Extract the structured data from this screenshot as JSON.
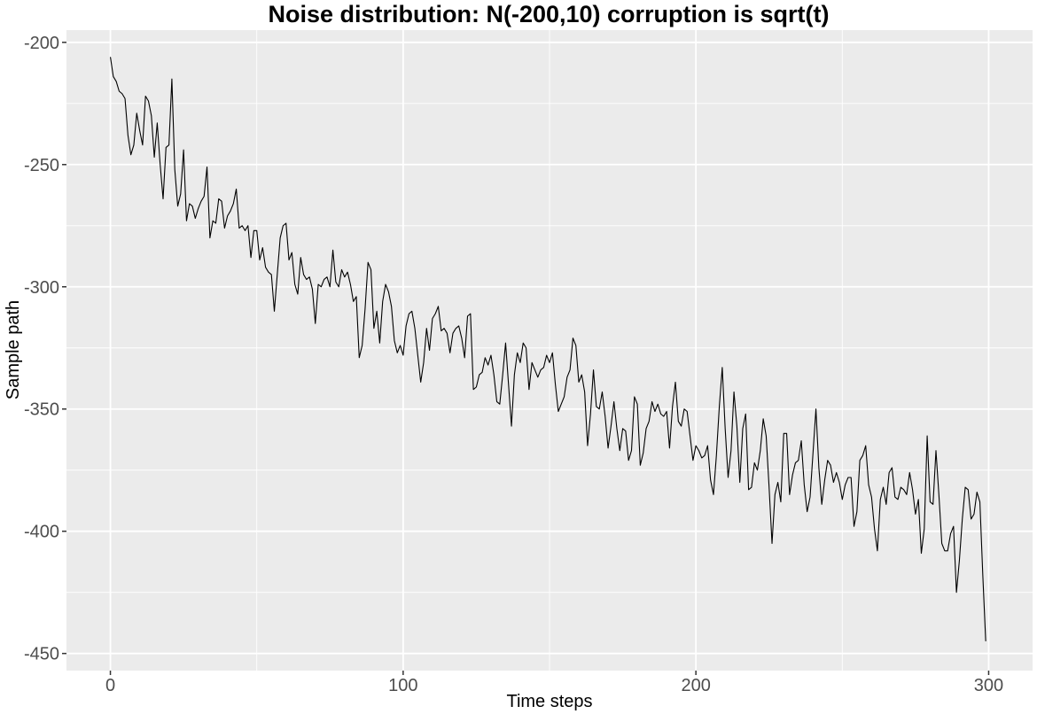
{
  "chart_data": {
    "type": "line",
    "title": "Noise distribution: N(-200,10) corruption is sqrt(t)",
    "xlabel": "Time steps",
    "ylabel": "Sample path",
    "xlim": [
      -15,
      315
    ],
    "ylim": [
      -457,
      -195
    ],
    "x_ticks": [
      0,
      100,
      200,
      300
    ],
    "x_tick_labels": [
      "0",
      "100",
      "200",
      "300"
    ],
    "y_ticks": [
      -200,
      -250,
      -300,
      -350,
      -400,
      -450
    ],
    "y_tick_labels": [
      "-200",
      "-250",
      "-300",
      "-350",
      "-400",
      "-450"
    ],
    "grid": true,
    "background_color": "#ebebeb",
    "grid_color": "#ffffff",
    "line_color": "#000000",
    "series": [
      {
        "x_start": 0,
        "x_step": 1,
        "values": [
          -206,
          -214,
          -216,
          -220,
          -221,
          -223,
          -238,
          -246,
          -242,
          -229,
          -236,
          -242,
          -222,
          -224,
          -230,
          -247,
          -233,
          -250,
          -264,
          -243,
          -242,
          -215,
          -252,
          -267,
          -262,
          -244,
          -273,
          -266,
          -267,
          -272,
          -268,
          -265,
          -263,
          -251,
          -280,
          -273,
          -274,
          -264,
          -265,
          -276,
          -271,
          -269,
          -266,
          -260,
          -276,
          -275,
          -277,
          -275,
          -288,
          -277,
          -277,
          -289,
          -284,
          -292,
          -294,
          -295,
          -310,
          -295,
          -280,
          -275,
          -274,
          -289,
          -286,
          -299,
          -303,
          -288,
          -295,
          -297,
          -296,
          -301,
          -315,
          -299,
          -300,
          -297,
          -296,
          -300,
          -285,
          -298,
          -300,
          -293,
          -296,
          -294,
          -299,
          -306,
          -304,
          -329,
          -324,
          -309,
          -290,
          -293,
          -317,
          -310,
          -323,
          -306,
          -299,
          -302,
          -308,
          -322,
          -327,
          -324,
          -328,
          -316,
          -311,
          -310,
          -317,
          -328,
          -339,
          -331,
          -317,
          -326,
          -313,
          -311,
          -308,
          -318,
          -317,
          -319,
          -327,
          -319,
          -317,
          -316,
          -321,
          -329,
          -312,
          -311,
          -342,
          -341,
          -336,
          -335,
          -329,
          -332,
          -328,
          -336,
          -347,
          -348,
          -336,
          -323,
          -340,
          -357,
          -336,
          -327,
          -331,
          -323,
          -325,
          -342,
          -331,
          -334,
          -337,
          -334,
          -333,
          -328,
          -331,
          -327,
          -340,
          -351,
          -348,
          -345,
          -337,
          -334,
          -321,
          -324,
          -339,
          -336,
          -343,
          -365,
          -352,
          -334,
          -349,
          -350,
          -343,
          -353,
          -366,
          -357,
          -347,
          -358,
          -367,
          -358,
          -359,
          -371,
          -367,
          -345,
          -348,
          -373,
          -368,
          -358,
          -355,
          -347,
          -351,
          -348,
          -352,
          -353,
          -351,
          -366,
          -349,
          -339,
          -355,
          -357,
          -350,
          -351,
          -361,
          -371,
          -365,
          -367,
          -370,
          -369,
          -365,
          -379,
          -385,
          -369,
          -349,
          -333,
          -358,
          -378,
          -367,
          -343,
          -357,
          -380,
          -358,
          -352,
          -383,
          -382,
          -372,
          -375,
          -367,
          -354,
          -361,
          -382,
          -405,
          -385,
          -380,
          -388,
          -360,
          -360,
          -385,
          -377,
          -372,
          -371,
          -363,
          -381,
          -392,
          -386,
          -368,
          -350,
          -374,
          -389,
          -379,
          -371,
          -373,
          -380,
          -376,
          -380,
          -387,
          -381,
          -378,
          -378,
          -398,
          -392,
          -371,
          -369,
          -365,
          -381,
          -386,
          -399,
          -408,
          -387,
          -382,
          -389,
          -376,
          -374,
          -386,
          -387,
          -382,
          -383,
          -385,
          -376,
          -383,
          -393,
          -387,
          -409,
          -399,
          -361,
          -388,
          -389,
          -367,
          -385,
          -405,
          -408,
          -408,
          -401,
          -398,
          -425,
          -412,
          -395,
          -382,
          -383,
          -395,
          -393,
          -384,
          -388,
          -418,
          -445
        ]
      }
    ]
  }
}
